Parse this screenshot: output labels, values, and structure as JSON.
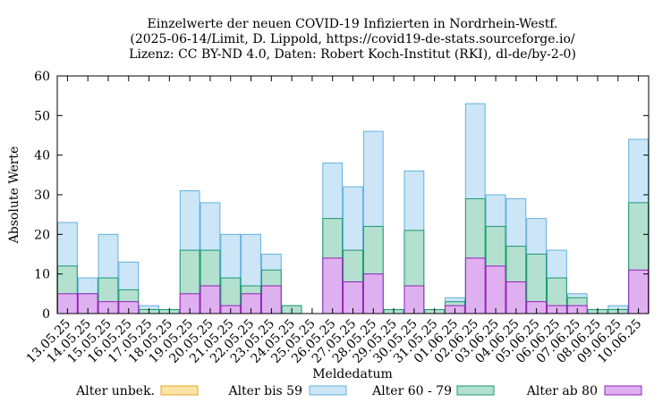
{
  "chart_data": {
    "type": "bar",
    "title_lines": [
      "Einzelwerte der neuen COVID-19 Infizierten in Nordrhein-Westf.",
      "(2025-06-14/Limit, D. Lippold, https://covid19-de-stats.sourceforge.io/",
      "Lizenz: CC BY-ND 4.0, Daten: Robert Koch-Institut (RKI), dl-de/by-2-0)"
    ],
    "xlabel": "Meldedatum",
    "ylabel": "Absolute Werte",
    "ylim": [
      0,
      60
    ],
    "yticks": [
      0,
      10,
      20,
      30,
      40,
      50,
      60
    ],
    "categories": [
      "13.05.25",
      "14.05.25",
      "15.05.25",
      "16.05.25",
      "17.05.25",
      "18.05.25",
      "19.05.25",
      "20.05.25",
      "21.05.25",
      "22.05.25",
      "23.05.25",
      "24.05.25",
      "25.05.25",
      "26.05.25",
      "27.05.25",
      "28.05.25",
      "29.05.25",
      "30.05.25",
      "31.05.25",
      "01.06.25",
      "02.06.25",
      "03.06.25",
      "04.06.25",
      "05.06.25",
      "06.06.25",
      "07.06.25",
      "08.06.25",
      "09.06.25",
      "10.06.25"
    ],
    "series": [
      {
        "name": "Alter unbek.",
        "fill": "#fde4a6",
        "stroke": "#e0a526",
        "values": [
          0,
          0,
          0,
          0,
          0,
          0,
          0,
          0,
          0,
          0,
          0,
          0,
          0,
          0,
          0,
          0,
          0,
          0,
          0,
          0,
          0,
          0,
          0,
          0,
          0,
          0,
          0,
          0,
          0
        ]
      },
      {
        "name": "Alter bis 59",
        "fill": "#cce6f8",
        "stroke": "#64b1dc",
        "values": [
          23,
          9,
          20,
          13,
          2,
          1,
          31,
          28,
          20,
          20,
          15,
          2,
          0,
          38,
          32,
          46,
          1,
          36,
          1,
          4,
          53,
          30,
          29,
          24,
          16,
          5,
          1,
          2,
          44
        ]
      },
      {
        "name": "Alter 60 - 79",
        "fill": "#b3e0cf",
        "stroke": "#1a9970",
        "values": [
          12,
          5,
          9,
          6,
          1,
          1,
          16,
          16,
          9,
          7,
          11,
          2,
          0,
          24,
          16,
          22,
          1,
          21,
          1,
          3,
          29,
          22,
          17,
          15,
          9,
          4,
          1,
          1,
          28
        ]
      },
      {
        "name": "Alter ab 80",
        "fill": "#dfb0f0",
        "stroke": "#9521b6",
        "values": [
          5,
          5,
          3,
          3,
          0,
          0,
          5,
          7,
          2,
          5,
          7,
          0,
          0,
          14,
          8,
          10,
          0,
          7,
          0,
          2,
          14,
          12,
          8,
          3,
          2,
          2,
          0,
          0,
          11
        ]
      }
    ],
    "grid": false,
    "legend_position": "bottom"
  }
}
